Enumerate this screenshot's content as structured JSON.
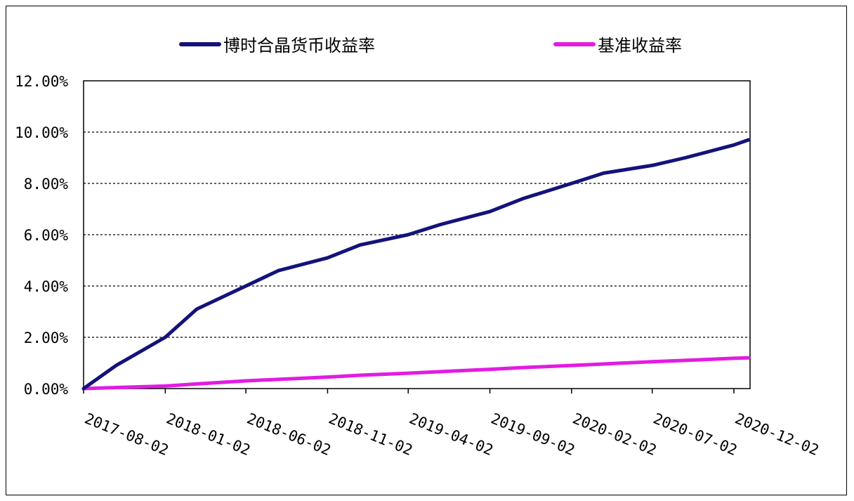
{
  "legend": {
    "series_1": "博时合晶货币收益率",
    "series_2": "基准收益率"
  },
  "colors": {
    "series_1": "#14127a",
    "series_2": "#e21ce2",
    "grid": "#000000",
    "axis": "#000000"
  },
  "chart_data": {
    "type": "line",
    "title": "",
    "xlabel": "",
    "ylabel": "",
    "x_ticks": [
      "2017-08-02",
      "2018-01-02",
      "2018-06-02",
      "2018-11-02",
      "2019-04-02",
      "2019-09-02",
      "2020-02-02",
      "2020-07-02",
      "2020-12-02"
    ],
    "y_ticks": [
      "0.00%",
      "2.00%",
      "4.00%",
      "6.00%",
      "8.00%",
      "10.00%",
      "12.00%"
    ],
    "ylim": [
      0,
      12
    ],
    "grid": true,
    "legend_position": "top",
    "x": [
      "2017-08-02",
      "2017-10-02",
      "2018-01-02",
      "2018-03-02",
      "2018-06-02",
      "2018-08-02",
      "2018-11-02",
      "2019-01-02",
      "2019-04-02",
      "2019-06-02",
      "2019-09-02",
      "2019-11-02",
      "2020-02-02",
      "2020-04-02",
      "2020-07-02",
      "2020-09-02",
      "2020-12-02",
      "2020-12-31"
    ],
    "series": [
      {
        "name": "博时合晶货币收益率",
        "values": [
          0.0,
          0.9,
          2.0,
          3.1,
          4.0,
          4.6,
          5.1,
          5.6,
          6.0,
          6.4,
          6.9,
          7.4,
          8.0,
          8.4,
          8.7,
          9.0,
          9.5,
          9.7
        ]
      },
      {
        "name": "基准收益率",
        "values": [
          0.0,
          0.04,
          0.1,
          0.18,
          0.3,
          0.36,
          0.45,
          0.52,
          0.6,
          0.66,
          0.75,
          0.82,
          0.9,
          0.96,
          1.05,
          1.1,
          1.18,
          1.2
        ]
      }
    ]
  }
}
